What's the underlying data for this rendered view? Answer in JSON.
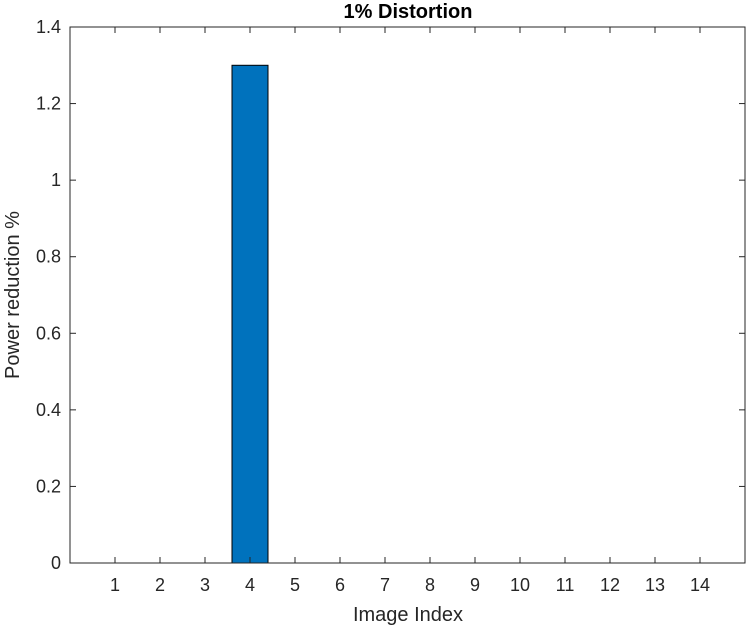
{
  "chart_data": {
    "type": "bar",
    "title": "1% Distortion",
    "xlabel": "Image Index",
    "ylabel": "Power reduction %",
    "categories": [
      "1",
      "2",
      "3",
      "4",
      "5",
      "6",
      "7",
      "8",
      "9",
      "10",
      "11",
      "12",
      "13",
      "14"
    ],
    "values": [
      0,
      0,
      0,
      1.3,
      0,
      0,
      0,
      0,
      0,
      0,
      0,
      0,
      0,
      0
    ],
    "xlim": [
      0,
      15
    ],
    "ylim": [
      0,
      1.4
    ],
    "yticks": [
      "0",
      "0.2",
      "0.4",
      "0.6",
      "0.8",
      "1",
      "1.2",
      "1.4"
    ],
    "grid": false,
    "bar_color": "#0072BD",
    "axis_color": "#262626"
  }
}
